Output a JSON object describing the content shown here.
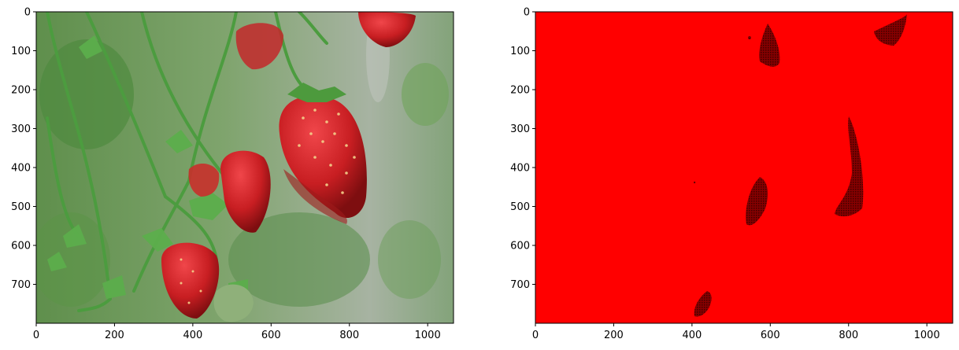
{
  "chart_data": [
    {
      "type": "image",
      "title": "",
      "xlabel": "",
      "ylabel": "",
      "xlim": [
        0,
        1066
      ],
      "ylim": [
        800,
        0
      ],
      "xticks": [
        0,
        200,
        400,
        600,
        800,
        1000
      ],
      "yticks": [
        0,
        100,
        200,
        300,
        400,
        500,
        600,
        700
      ],
      "image_description_icon": "strawberry-photo",
      "colors": {
        "background_bokeh": "#6e9b5e",
        "leaf": "#3f8f3a",
        "berry": "#d42a2a",
        "berry_dark": "#8e1414",
        "seed": "#f3d08a"
      }
    },
    {
      "type": "image",
      "title": "",
      "xlabel": "",
      "ylabel": "",
      "xlim": [
        0,
        1066
      ],
      "ylim": [
        800,
        0
      ],
      "xticks": [
        0,
        200,
        400,
        600,
        800,
        1000
      ],
      "yticks": [
        0,
        100,
        200,
        300,
        400,
        500,
        600,
        700
      ],
      "image_description_icon": "red-mask",
      "colors": {
        "fill": "#ff0000",
        "shadow": "#6a0000"
      }
    }
  ]
}
